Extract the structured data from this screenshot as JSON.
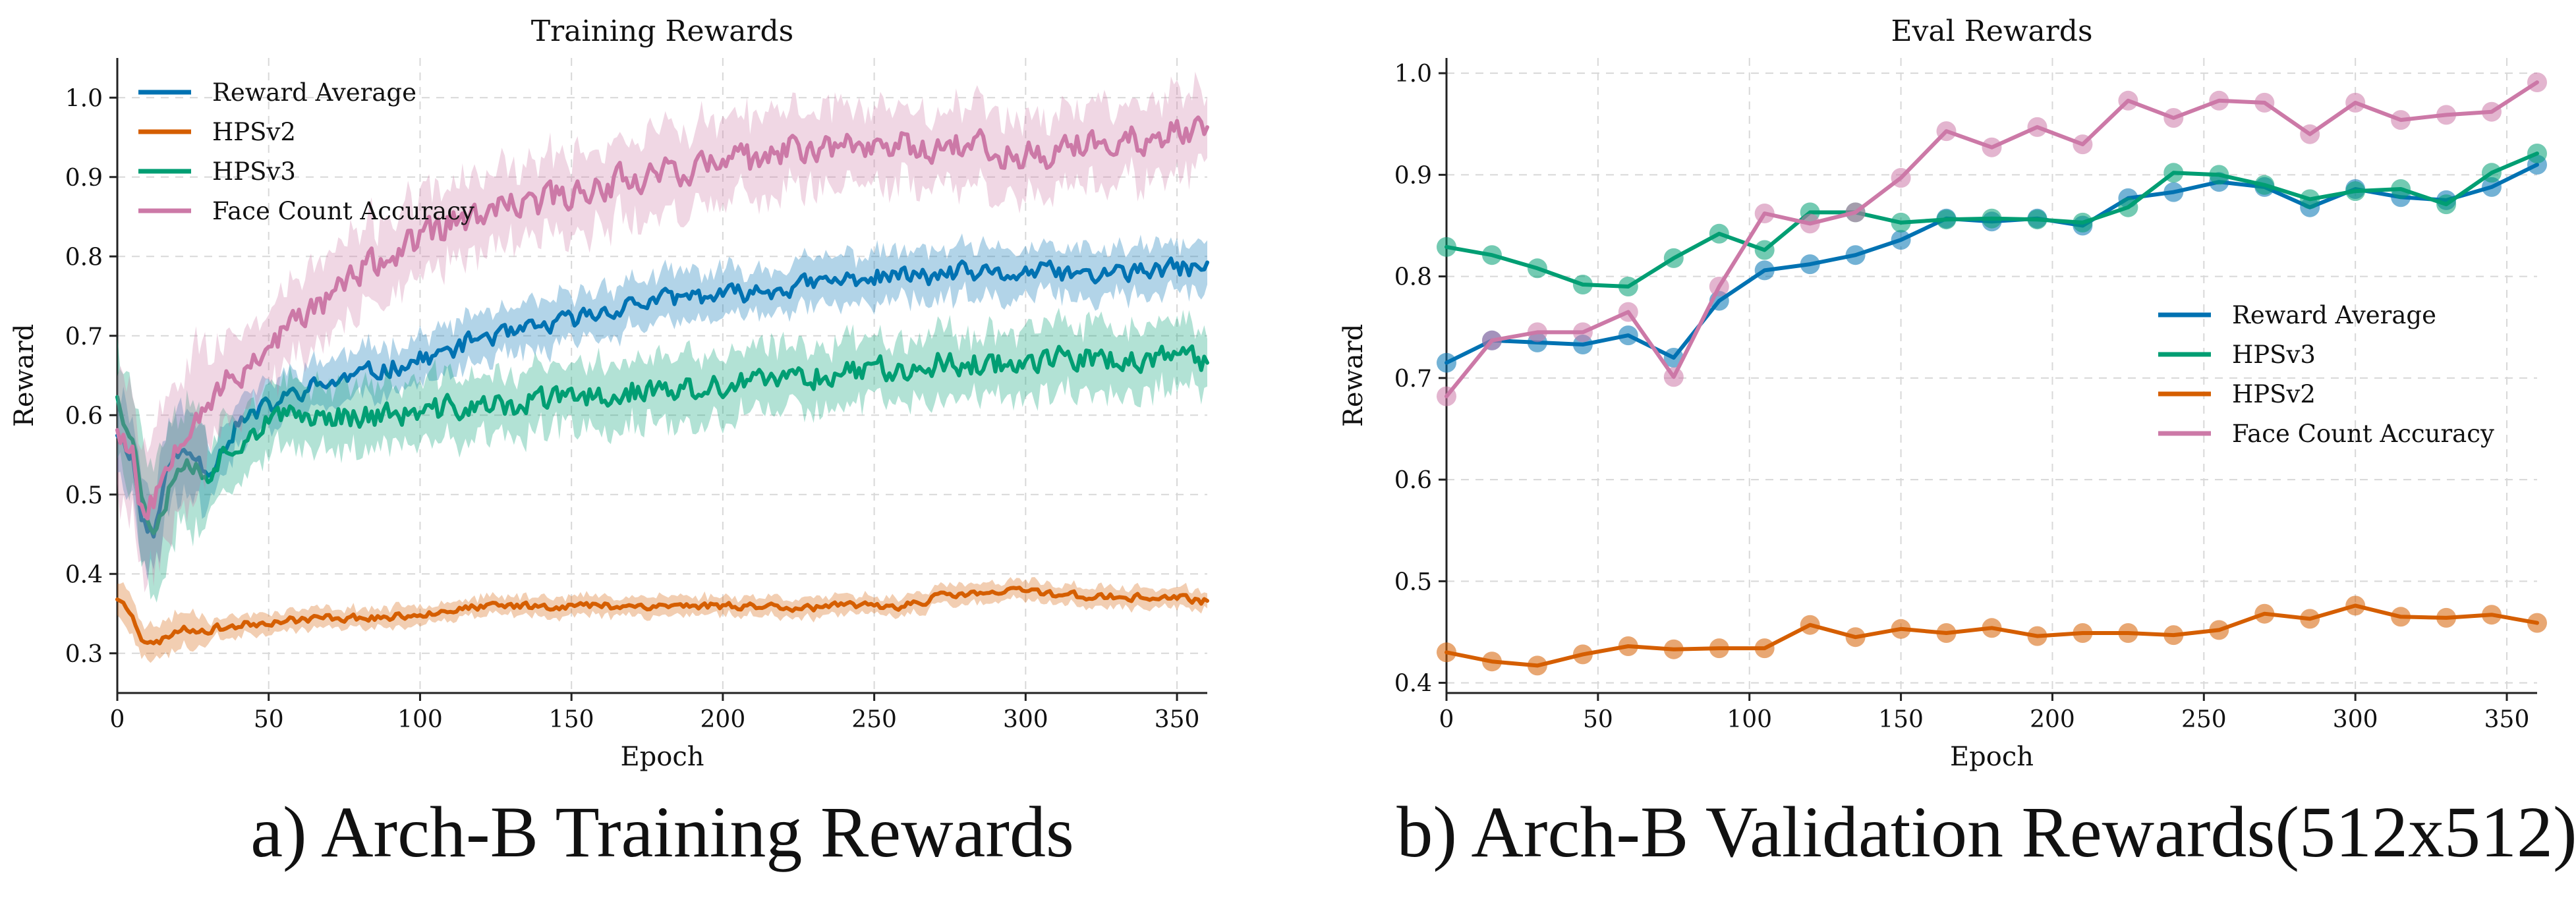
{
  "captions": {
    "left": "a) Arch-B Training Rewards",
    "right": "b) Arch-B Validation Rewards(512x512)"
  },
  "chart_data": [
    {
      "type": "line",
      "title": "Training Rewards",
      "xlabel": "Epoch",
      "ylabel": "Reward",
      "xlim": [
        0,
        360
      ],
      "ylim": [
        0.25,
        1.05
      ],
      "xticks": [
        0,
        50,
        100,
        150,
        200,
        250,
        300,
        350
      ],
      "yticks": [
        0.3,
        0.4,
        0.5,
        0.6,
        0.7,
        0.8,
        0.9,
        1.0
      ],
      "grid": true,
      "legend_position": "top-left",
      "series": [
        {
          "name": "Reward Average",
          "color": "#0072B2",
          "band": 0.03,
          "anchors": [
            [
              0,
              0.58
            ],
            [
              5,
              0.55
            ],
            [
              8,
              0.47
            ],
            [
              12,
              0.45
            ],
            [
              18,
              0.55
            ],
            [
              25,
              0.55
            ],
            [
              30,
              0.53
            ],
            [
              35,
              0.56
            ],
            [
              40,
              0.59
            ],
            [
              50,
              0.61
            ],
            [
              60,
              0.63
            ],
            [
              70,
              0.64
            ],
            [
              80,
              0.65
            ],
            [
              90,
              0.66
            ],
            [
              100,
              0.67
            ],
            [
              110,
              0.68
            ],
            [
              120,
              0.7
            ],
            [
              130,
              0.7
            ],
            [
              140,
              0.71
            ],
            [
              150,
              0.72
            ],
            [
              160,
              0.73
            ],
            [
              170,
              0.74
            ],
            [
              180,
              0.745
            ],
            [
              190,
              0.75
            ],
            [
              200,
              0.75
            ],
            [
              210,
              0.755
            ],
            [
              220,
              0.76
            ],
            [
              230,
              0.765
            ],
            [
              240,
              0.77
            ],
            [
              250,
              0.775
            ],
            [
              260,
              0.775
            ],
            [
              270,
              0.775
            ],
            [
              280,
              0.78
            ],
            [
              290,
              0.775
            ],
            [
              300,
              0.78
            ],
            [
              310,
              0.78
            ],
            [
              320,
              0.775
            ],
            [
              330,
              0.78
            ],
            [
              340,
              0.78
            ],
            [
              350,
              0.785
            ],
            [
              360,
              0.785
            ]
          ]
        },
        {
          "name": "HPSv2",
          "color": "#D55E00",
          "band": 0.012,
          "anchors": [
            [
              0,
              0.37
            ],
            [
              5,
              0.35
            ],
            [
              8,
              0.32
            ],
            [
              12,
              0.31
            ],
            [
              20,
              0.33
            ],
            [
              30,
              0.33
            ],
            [
              40,
              0.335
            ],
            [
              50,
              0.34
            ],
            [
              70,
              0.345
            ],
            [
              90,
              0.345
            ],
            [
              110,
              0.355
            ],
            [
              130,
              0.36
            ],
            [
              150,
              0.36
            ],
            [
              170,
              0.36
            ],
            [
              190,
              0.36
            ],
            [
              210,
              0.36
            ],
            [
              230,
              0.358
            ],
            [
              250,
              0.36
            ],
            [
              260,
              0.36
            ],
            [
              270,
              0.37
            ],
            [
              280,
              0.375
            ],
            [
              290,
              0.375
            ],
            [
              300,
              0.38
            ],
            [
              310,
              0.375
            ],
            [
              320,
              0.372
            ],
            [
              330,
              0.37
            ],
            [
              340,
              0.37
            ],
            [
              350,
              0.37
            ],
            [
              360,
              0.365
            ]
          ]
        },
        {
          "name": "HPSv3",
          "color": "#009E73",
          "band": 0.04,
          "anchors": [
            [
              0,
              0.63
            ],
            [
              5,
              0.57
            ],
            [
              8,
              0.5
            ],
            [
              12,
              0.46
            ],
            [
              20,
              0.54
            ],
            [
              30,
              0.53
            ],
            [
              40,
              0.57
            ],
            [
              50,
              0.59
            ],
            [
              60,
              0.6
            ],
            [
              70,
              0.6
            ],
            [
              80,
              0.6
            ],
            [
              90,
              0.6
            ],
            [
              100,
              0.6
            ],
            [
              110,
              0.61
            ],
            [
              120,
              0.61
            ],
            [
              130,
              0.61
            ],
            [
              140,
              0.62
            ],
            [
              150,
              0.62
            ],
            [
              160,
              0.625
            ],
            [
              170,
              0.63
            ],
            [
              180,
              0.63
            ],
            [
              190,
              0.63
            ],
            [
              200,
              0.635
            ],
            [
              210,
              0.64
            ],
            [
              220,
              0.645
            ],
            [
              230,
              0.65
            ],
            [
              240,
              0.655
            ],
            [
              250,
              0.66
            ],
            [
              260,
              0.66
            ],
            [
              270,
              0.665
            ],
            [
              280,
              0.665
            ],
            [
              290,
              0.665
            ],
            [
              300,
              0.67
            ],
            [
              310,
              0.67
            ],
            [
              320,
              0.67
            ],
            [
              330,
              0.67
            ],
            [
              340,
              0.67
            ],
            [
              350,
              0.67
            ],
            [
              360,
              0.665
            ]
          ]
        },
        {
          "name": "Face Count Accuracy",
          "color": "#CC79A7",
          "band": 0.05,
          "anchors": [
            [
              0,
              0.59
            ],
            [
              5,
              0.55
            ],
            [
              8,
              0.48
            ],
            [
              12,
              0.49
            ],
            [
              18,
              0.56
            ],
            [
              25,
              0.6
            ],
            [
              30,
              0.62
            ],
            [
              40,
              0.65
            ],
            [
              50,
              0.69
            ],
            [
              60,
              0.72
            ],
            [
              70,
              0.75
            ],
            [
              80,
              0.78
            ],
            [
              90,
              0.8
            ],
            [
              100,
              0.82
            ],
            [
              110,
              0.84
            ],
            [
              120,
              0.85
            ],
            [
              130,
              0.86
            ],
            [
              140,
              0.87
            ],
            [
              150,
              0.88
            ],
            [
              160,
              0.89
            ],
            [
              170,
              0.9
            ],
            [
              180,
              0.91
            ],
            [
              190,
              0.91
            ],
            [
              200,
              0.92
            ],
            [
              210,
              0.92
            ],
            [
              220,
              0.93
            ],
            [
              230,
              0.94
            ],
            [
              240,
              0.94
            ],
            [
              250,
              0.94
            ],
            [
              260,
              0.94
            ],
            [
              270,
              0.94
            ],
            [
              280,
              0.945
            ],
            [
              290,
              0.93
            ],
            [
              300,
              0.93
            ],
            [
              310,
              0.93
            ],
            [
              320,
              0.94
            ],
            [
              330,
              0.94
            ],
            [
              340,
              0.95
            ],
            [
              350,
              0.955
            ],
            [
              360,
              0.96
            ]
          ]
        }
      ]
    },
    {
      "type": "line",
      "title": "Eval Rewards",
      "xlabel": "Epoch",
      "ylabel": "Reward",
      "xlim": [
        0,
        360
      ],
      "ylim": [
        0.39,
        1.015
      ],
      "xticks": [
        0,
        50,
        100,
        150,
        200,
        250,
        300,
        350
      ],
      "yticks": [
        0.4,
        0.5,
        0.6,
        0.7,
        0.8,
        0.9,
        1.0
      ],
      "grid": true,
      "legend_position": "center-right",
      "x": [
        0,
        15,
        30,
        45,
        60,
        75,
        90,
        105,
        120,
        135,
        150,
        165,
        180,
        195,
        210,
        225,
        240,
        255,
        270,
        285,
        300,
        315,
        330,
        345,
        360
      ],
      "series": [
        {
          "name": "Reward Average",
          "color": "#0072B2",
          "values": [
            0.715,
            0.737,
            0.735,
            0.733,
            0.742,
            0.72,
            0.776,
            0.806,
            0.812,
            0.821,
            0.836,
            0.857,
            0.854,
            0.857,
            0.85,
            0.877,
            0.883,
            0.893,
            0.888,
            0.868,
            0.886,
            0.878,
            0.875,
            0.888,
            0.91
          ]
        },
        {
          "name": "HPSv3",
          "color": "#009E73",
          "values": [
            0.829,
            0.821,
            0.808,
            0.792,
            0.79,
            0.818,
            0.842,
            0.826,
            0.863,
            0.863,
            0.853,
            0.856,
            0.857,
            0.856,
            0.853,
            0.868,
            0.902,
            0.9,
            0.89,
            0.876,
            0.884,
            0.886,
            0.871,
            0.902,
            0.921
          ]
        },
        {
          "name": "HPSv2",
          "color": "#D55E00",
          "values": [
            0.43,
            0.421,
            0.417,
            0.428,
            0.436,
            0.433,
            0.434,
            0.434,
            0.457,
            0.445,
            0.453,
            0.449,
            0.454,
            0.446,
            0.449,
            0.449,
            0.447,
            0.452,
            0.468,
            0.463,
            0.476,
            0.465,
            0.464,
            0.467,
            0.459
          ]
        },
        {
          "name": "Face Count Accuracy",
          "color": "#CC79A7",
          "values": [
            0.682,
            0.737,
            0.745,
            0.745,
            0.765,
            0.701,
            0.79,
            0.862,
            0.852,
            0.863,
            0.897,
            0.943,
            0.927,
            0.947,
            0.93,
            0.973,
            0.956,
            0.973,
            0.971,
            0.94,
            0.971,
            0.954,
            0.959,
            0.962,
            0.991
          ]
        }
      ]
    }
  ]
}
